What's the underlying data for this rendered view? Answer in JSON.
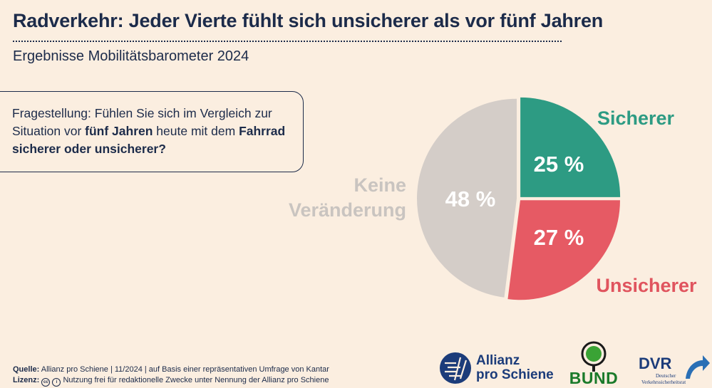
{
  "header": {
    "title": "Radverkehr: Jeder Vierte fühlt sich unsicherer als vor fünf Jahren",
    "subtitle": "Ergebnisse Mobilitätsbarometer 2024"
  },
  "question": {
    "prefix": "Fragestellung: Fühlen Sie sich im Vergleich zur Situation vor ",
    "bold1": "fünf Jahren",
    "middle": " heute mit dem ",
    "bold2": "Fahrrad sicherer oder unsicherer?"
  },
  "chart_data": {
    "type": "pie",
    "title": "",
    "slices": [
      {
        "label": "Sicherer",
        "value": 25,
        "display": "25 %",
        "color": "#2d9b83",
        "label_color": "#2d9b83"
      },
      {
        "label": "Unsicherer",
        "value": 27,
        "display": "27 %",
        "color": "#e65a64",
        "label_color": "#e0545e"
      },
      {
        "label_lines": [
          "Keine",
          "Veränderung"
        ],
        "label": "Keine Veränderung",
        "value": 48,
        "display": "48 %",
        "color": "#d4cdc8",
        "label_color": "#c9c4c0"
      }
    ],
    "legend": "none"
  },
  "footer": {
    "source_label": "Quelle:",
    "source_text": " Allianz pro Schiene | 11/2024 | auf Basis einer repräsentativen Umfrage von Kantar",
    "license_label": "Lizenz:",
    "license_text": " Nutzung frei für redaktionelle Zwecke unter Nennung der Allianz pro Schiene"
  },
  "logos": {
    "allianz_line1": "Allianz",
    "allianz_line2": "pro Schiene",
    "bund": "BUND",
    "dvr": "DVR",
    "dvr_sub1": "Deutscher",
    "dvr_sub2": "Verkehrssicherheitsrat",
    "allianz_color": "#1c3c7a",
    "bund_color": "#2a8c2a"
  }
}
